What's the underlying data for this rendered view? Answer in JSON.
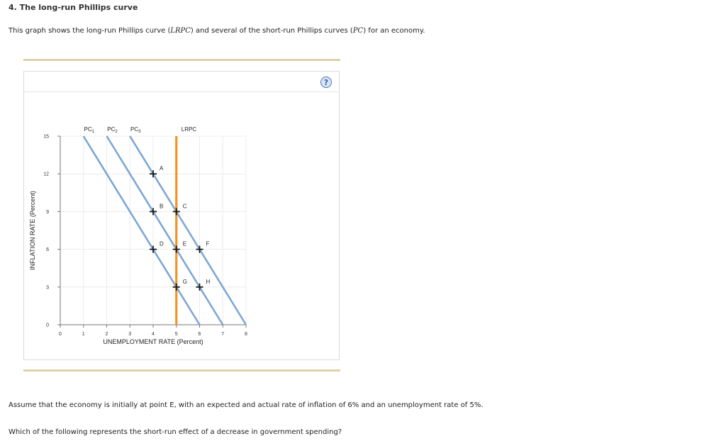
{
  "question": {
    "title": "4. The long-run Phillips curve",
    "intro_a": "This graph shows the long-run Phillips curve (",
    "intro_lrpc": "LRPC",
    "intro_b": ") and several of the short-run Phillips curves (",
    "intro_pc": "PC",
    "intro_c": ") for an economy.",
    "scenario": "Assume that the economy is initially at point E, with an expected and actual rate of inflation of 6% and an unemployment rate of 5%.",
    "prompt": "Which of the following represents the short-run effect of a decrease in government spending?"
  },
  "help_label": "?",
  "chart_data": {
    "type": "line",
    "xlabel": "UNEMPLOYMENT RATE (Percent)",
    "ylabel": "INFLATION RATE (Percent)",
    "xlim": [
      0,
      8
    ],
    "ylim": [
      0,
      15
    ],
    "xticks": [
      0,
      1,
      2,
      3,
      4,
      5,
      6,
      7,
      8
    ],
    "yticks": [
      0,
      3,
      6,
      9,
      12,
      15
    ],
    "grid": true,
    "series": [
      {
        "name": "PC",
        "sub": "1",
        "x": [
          1,
          6
        ],
        "y": [
          15,
          0
        ],
        "color": "#7ea6d4"
      },
      {
        "name": "PC",
        "sub": "2",
        "x": [
          2,
          7
        ],
        "y": [
          15,
          0
        ],
        "color": "#7ea6d4"
      },
      {
        "name": "PC",
        "sub": "3",
        "x": [
          3,
          8
        ],
        "y": [
          15,
          0
        ],
        "color": "#7ea6d4"
      },
      {
        "name": "LRPC",
        "sub": "",
        "x": [
          5,
          5
        ],
        "y": [
          15,
          0
        ],
        "color": "#f39325"
      }
    ],
    "points": [
      {
        "label": "A",
        "x": 4,
        "y": 12
      },
      {
        "label": "B",
        "x": 4,
        "y": 9
      },
      {
        "label": "C",
        "x": 5,
        "y": 9
      },
      {
        "label": "D",
        "x": 4,
        "y": 6
      },
      {
        "label": "E",
        "x": 5,
        "y": 6
      },
      {
        "label": "F",
        "x": 6,
        "y": 6
      },
      {
        "label": "G",
        "x": 5,
        "y": 3
      },
      {
        "label": "H",
        "x": 6,
        "y": 3
      }
    ]
  }
}
